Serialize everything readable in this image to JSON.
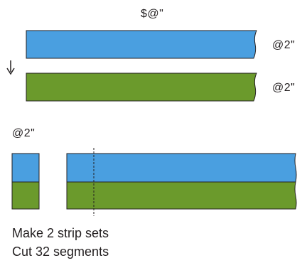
{
  "labels": {
    "top_measure": "$@\"",
    "strip_measure_1": "@2\"",
    "strip_measure_2": "@2\"",
    "segment_measure": "@2\""
  },
  "instructions": {
    "line1": "Make 2 strip sets",
    "line2": "Cut 32 segments"
  },
  "colors": {
    "blue_fabric": "#4a9fe0",
    "green_fabric": "#6b9a2c",
    "outline": "#231f20"
  },
  "icons": {
    "direction": "arrow-down-icon",
    "cut_line": "dashed-cut-line"
  }
}
